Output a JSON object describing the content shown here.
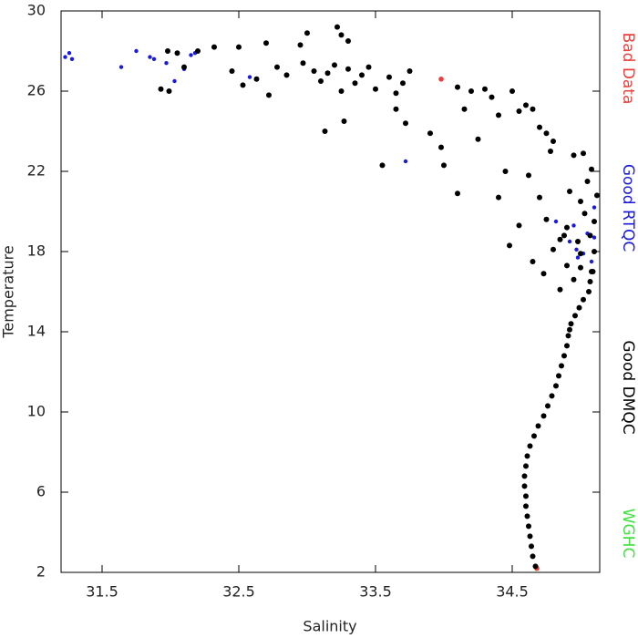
{
  "chart_data": {
    "type": "scatter",
    "x_label": "Salinity",
    "y_label": "Temperature",
    "xlim": [
      31.2,
      35.14
    ],
    "ylim": [
      2,
      30
    ],
    "xticks": [
      31.5,
      32.5,
      33.5,
      34.5
    ],
    "yticks": [
      2,
      6,
      10,
      14,
      18,
      22,
      26,
      30
    ],
    "series": [
      {
        "name": "Bad Data",
        "color": "#e8403a",
        "x": [
          34.68,
          33.98
        ],
        "values": [
          2.2,
          26.6
        ]
      },
      {
        "name": "Good RTQC",
        "color": "#1a1adc",
        "x": [
          31.23,
          31.26,
          31.28,
          31.64,
          31.75,
          31.85,
          31.88,
          31.97,
          32.03,
          32.1,
          32.15,
          32.18,
          32.58,
          33.72,
          34.82,
          34.92,
          34.97,
          34.98,
          35.02,
          35.05,
          35.1,
          35.08,
          34.95,
          35.1
        ],
        "values": [
          27.7,
          27.9,
          27.6,
          27.2,
          28.0,
          27.7,
          27.6,
          27.4,
          26.5,
          27.1,
          27.8,
          27.9,
          26.7,
          22.5,
          19.5,
          18.5,
          18.1,
          17.7,
          17.9,
          18.9,
          18.7,
          17.5,
          19.3,
          20.2
        ]
      },
      {
        "name": "Good DMQC",
        "color": "#000000",
        "x": [
          34.67,
          34.65,
          34.64,
          34.63,
          34.62,
          34.61,
          34.6,
          34.6,
          34.59,
          34.59,
          34.6,
          34.61,
          34.63,
          34.66,
          34.69,
          34.73,
          34.76,
          34.79,
          34.82,
          34.84,
          34.86,
          34.88,
          34.9,
          34.91,
          34.92,
          34.93,
          34.96,
          34.99,
          35.02,
          35.06,
          35.07,
          35.08,
          32.95,
          33.0,
          33.22,
          33.25,
          33.3,
          32.7,
          32.5,
          32.32,
          32.2,
          32.05,
          31.98,
          31.93,
          31.99,
          32.1,
          32.45,
          32.53,
          32.63,
          32.72,
          32.78,
          32.85,
          32.97,
          33.05,
          33.1,
          33.15,
          33.2,
          33.25,
          33.3,
          33.35,
          33.4,
          33.45,
          33.5,
          33.6,
          33.65,
          33.7,
          33.75,
          33.65,
          33.72,
          33.55,
          33.27,
          33.13,
          34.1,
          34.15,
          34.2,
          34.25,
          34.3,
          34.35,
          34.4,
          34.45,
          34.5,
          34.55,
          34.6,
          34.65,
          34.7,
          34.75,
          34.8,
          34.1,
          33.98,
          33.9,
          34.0,
          34.4,
          34.48,
          34.55,
          34.62,
          34.7,
          34.75,
          34.8,
          34.85,
          34.9,
          34.92,
          34.95,
          35.0,
          35.02,
          35.05,
          35.08,
          35.1,
          35.07,
          35.0,
          34.98,
          35.1,
          35.12,
          34.85,
          34.9,
          35.03,
          35.09,
          34.95,
          35.0,
          34.88,
          34.73,
          34.78,
          34.65
        ],
        "values": [
          2.3,
          2.8,
          3.3,
          3.8,
          4.3,
          4.8,
          5.3,
          5.8,
          6.3,
          6.8,
          7.3,
          7.8,
          8.3,
          8.8,
          9.3,
          9.8,
          10.3,
          10.8,
          11.3,
          11.8,
          12.3,
          12.8,
          13.3,
          13.8,
          14.1,
          14.4,
          14.8,
          15.2,
          15.6,
          16.0,
          16.5,
          17.0,
          28.3,
          28.9,
          29.2,
          28.8,
          28.5,
          28.4,
          28.2,
          28.2,
          28.0,
          27.9,
          28.0,
          26.1,
          26.0,
          27.2,
          27.0,
          26.3,
          26.6,
          25.8,
          27.2,
          26.8,
          27.4,
          27.0,
          26.5,
          26.9,
          27.3,
          26.0,
          27.1,
          26.4,
          26.8,
          27.2,
          26.1,
          26.7,
          25.9,
          26.4,
          27.0,
          25.1,
          24.4,
          22.3,
          24.5,
          24.0,
          26.2,
          25.1,
          26.0,
          23.6,
          26.1,
          25.7,
          24.8,
          22.0,
          26.0,
          25.0,
          25.3,
          25.1,
          24.2,
          23.9,
          23.5,
          20.9,
          23.2,
          23.9,
          22.3,
          20.7,
          18.3,
          19.3,
          21.8,
          20.7,
          19.6,
          18.1,
          18.6,
          17.3,
          21.0,
          22.8,
          20.5,
          22.9,
          21.5,
          22.1,
          19.5,
          18.8,
          17.9,
          18.5,
          18.0,
          20.8,
          16.1,
          19.2,
          19.9,
          17.0,
          16.6,
          17.2,
          18.8,
          16.9,
          23.0,
          17.5
        ]
      },
      {
        "name": "WGHC",
        "color": "#3fe03f",
        "x": [],
        "values": []
      }
    ]
  }
}
